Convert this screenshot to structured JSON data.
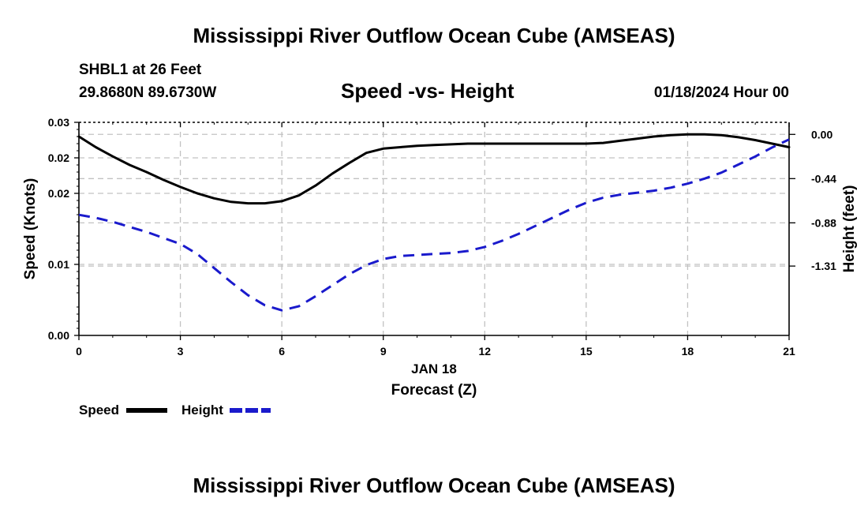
{
  "header": {
    "title": "Mississippi River Outflow Ocean Cube (AMSEAS)",
    "station": "SHBL1 at 26 Feet",
    "coords": "29.8680N  89.6730W",
    "subtitle": "Speed -vs- Height",
    "datetime": "01/18/2024 Hour 00"
  },
  "footer": {
    "title": "Mississippi River Outflow Ocean Cube (AMSEAS)"
  },
  "chart_data": {
    "type": "line",
    "title": "Speed -vs- Height",
    "xlabel": "Forecast (Z)",
    "xlabel_date": "JAN 18",
    "ylabel": "Speed (Knots)",
    "y2label": "Height (feet)",
    "xlim": [
      0,
      21
    ],
    "ylim": [
      0,
      0.03
    ],
    "y2lim": [
      -2.0,
      0.12
    ],
    "x_ticks": [
      0,
      3,
      6,
      9,
      12,
      15,
      18,
      21
    ],
    "x_tick_labels": [
      "0",
      "3",
      "6",
      "9",
      "12",
      "15",
      "18",
      "21"
    ],
    "y_ticks": [
      0,
      0.01,
      0.02,
      0.025,
      0.03
    ],
    "y_tick_labels": [
      "0.00",
      "0.01",
      "0.02",
      "0.02",
      "0.03"
    ],
    "y2_ticks": [
      0.0,
      -0.44,
      -0.88,
      -1.31
    ],
    "y2_tick_labels": [
      "0.00",
      "-0.44",
      "-0.88",
      "-1.31"
    ],
    "grid": true,
    "series": [
      {
        "name": "Speed",
        "axis": "left",
        "color": "#000000",
        "dash": "solid",
        "x": [
          0,
          0.5,
          1,
          1.5,
          2,
          2.5,
          3,
          3.5,
          4,
          4.5,
          5,
          5.5,
          6,
          6.5,
          7,
          7.5,
          8,
          8.5,
          9,
          9.5,
          10,
          10.5,
          11,
          11.5,
          12,
          12.5,
          13,
          13.5,
          14,
          14.5,
          15,
          15.5,
          16,
          16.5,
          17,
          17.5,
          18,
          18.5,
          19,
          19.5,
          20,
          20.5,
          21
        ],
        "values": [
          0.028,
          0.0265,
          0.0252,
          0.024,
          0.023,
          0.0219,
          0.0209,
          0.02,
          0.0193,
          0.0188,
          0.0186,
          0.0186,
          0.0189,
          0.0197,
          0.0211,
          0.0228,
          0.0243,
          0.0257,
          0.0263,
          0.0265,
          0.0267,
          0.0268,
          0.0269,
          0.027,
          0.027,
          0.027,
          0.027,
          0.027,
          0.027,
          0.027,
          0.027,
          0.0271,
          0.0274,
          0.0277,
          0.028,
          0.0282,
          0.0283,
          0.0283,
          0.0282,
          0.0279,
          0.0275,
          0.027,
          0.0265
        ]
      },
      {
        "name": "Height",
        "axis": "right",
        "color": "#1a1acc",
        "dash": "dashed",
        "x": [
          0,
          0.5,
          1,
          1.5,
          2,
          2.5,
          3,
          3.5,
          4,
          4.5,
          5,
          5.5,
          6,
          6.5,
          7,
          7.5,
          8,
          8.5,
          9,
          9.5,
          10,
          10.5,
          11,
          11.5,
          12,
          12.5,
          13,
          13.5,
          14,
          14.5,
          15,
          15.5,
          16,
          16.5,
          17,
          17.5,
          18,
          18.5,
          19,
          19.5,
          20,
          20.5,
          21
        ],
        "values": [
          -0.8,
          -0.83,
          -0.87,
          -0.92,
          -0.97,
          -1.03,
          -1.09,
          -1.19,
          -1.33,
          -1.47,
          -1.6,
          -1.7,
          -1.75,
          -1.71,
          -1.61,
          -1.5,
          -1.39,
          -1.3,
          -1.24,
          -1.21,
          -1.2,
          -1.19,
          -1.18,
          -1.16,
          -1.12,
          -1.06,
          -0.99,
          -0.91,
          -0.83,
          -0.75,
          -0.68,
          -0.63,
          -0.6,
          -0.58,
          -0.56,
          -0.53,
          -0.49,
          -0.44,
          -0.38,
          -0.3,
          -0.22,
          -0.13,
          -0.05
        ]
      }
    ],
    "legend": [
      {
        "label": "Speed",
        "color": "#000000",
        "dash": "solid"
      },
      {
        "label": "Height",
        "color": "#1a1acc",
        "dash": "dashed"
      }
    ],
    "legend_position": "bottom-left"
  }
}
